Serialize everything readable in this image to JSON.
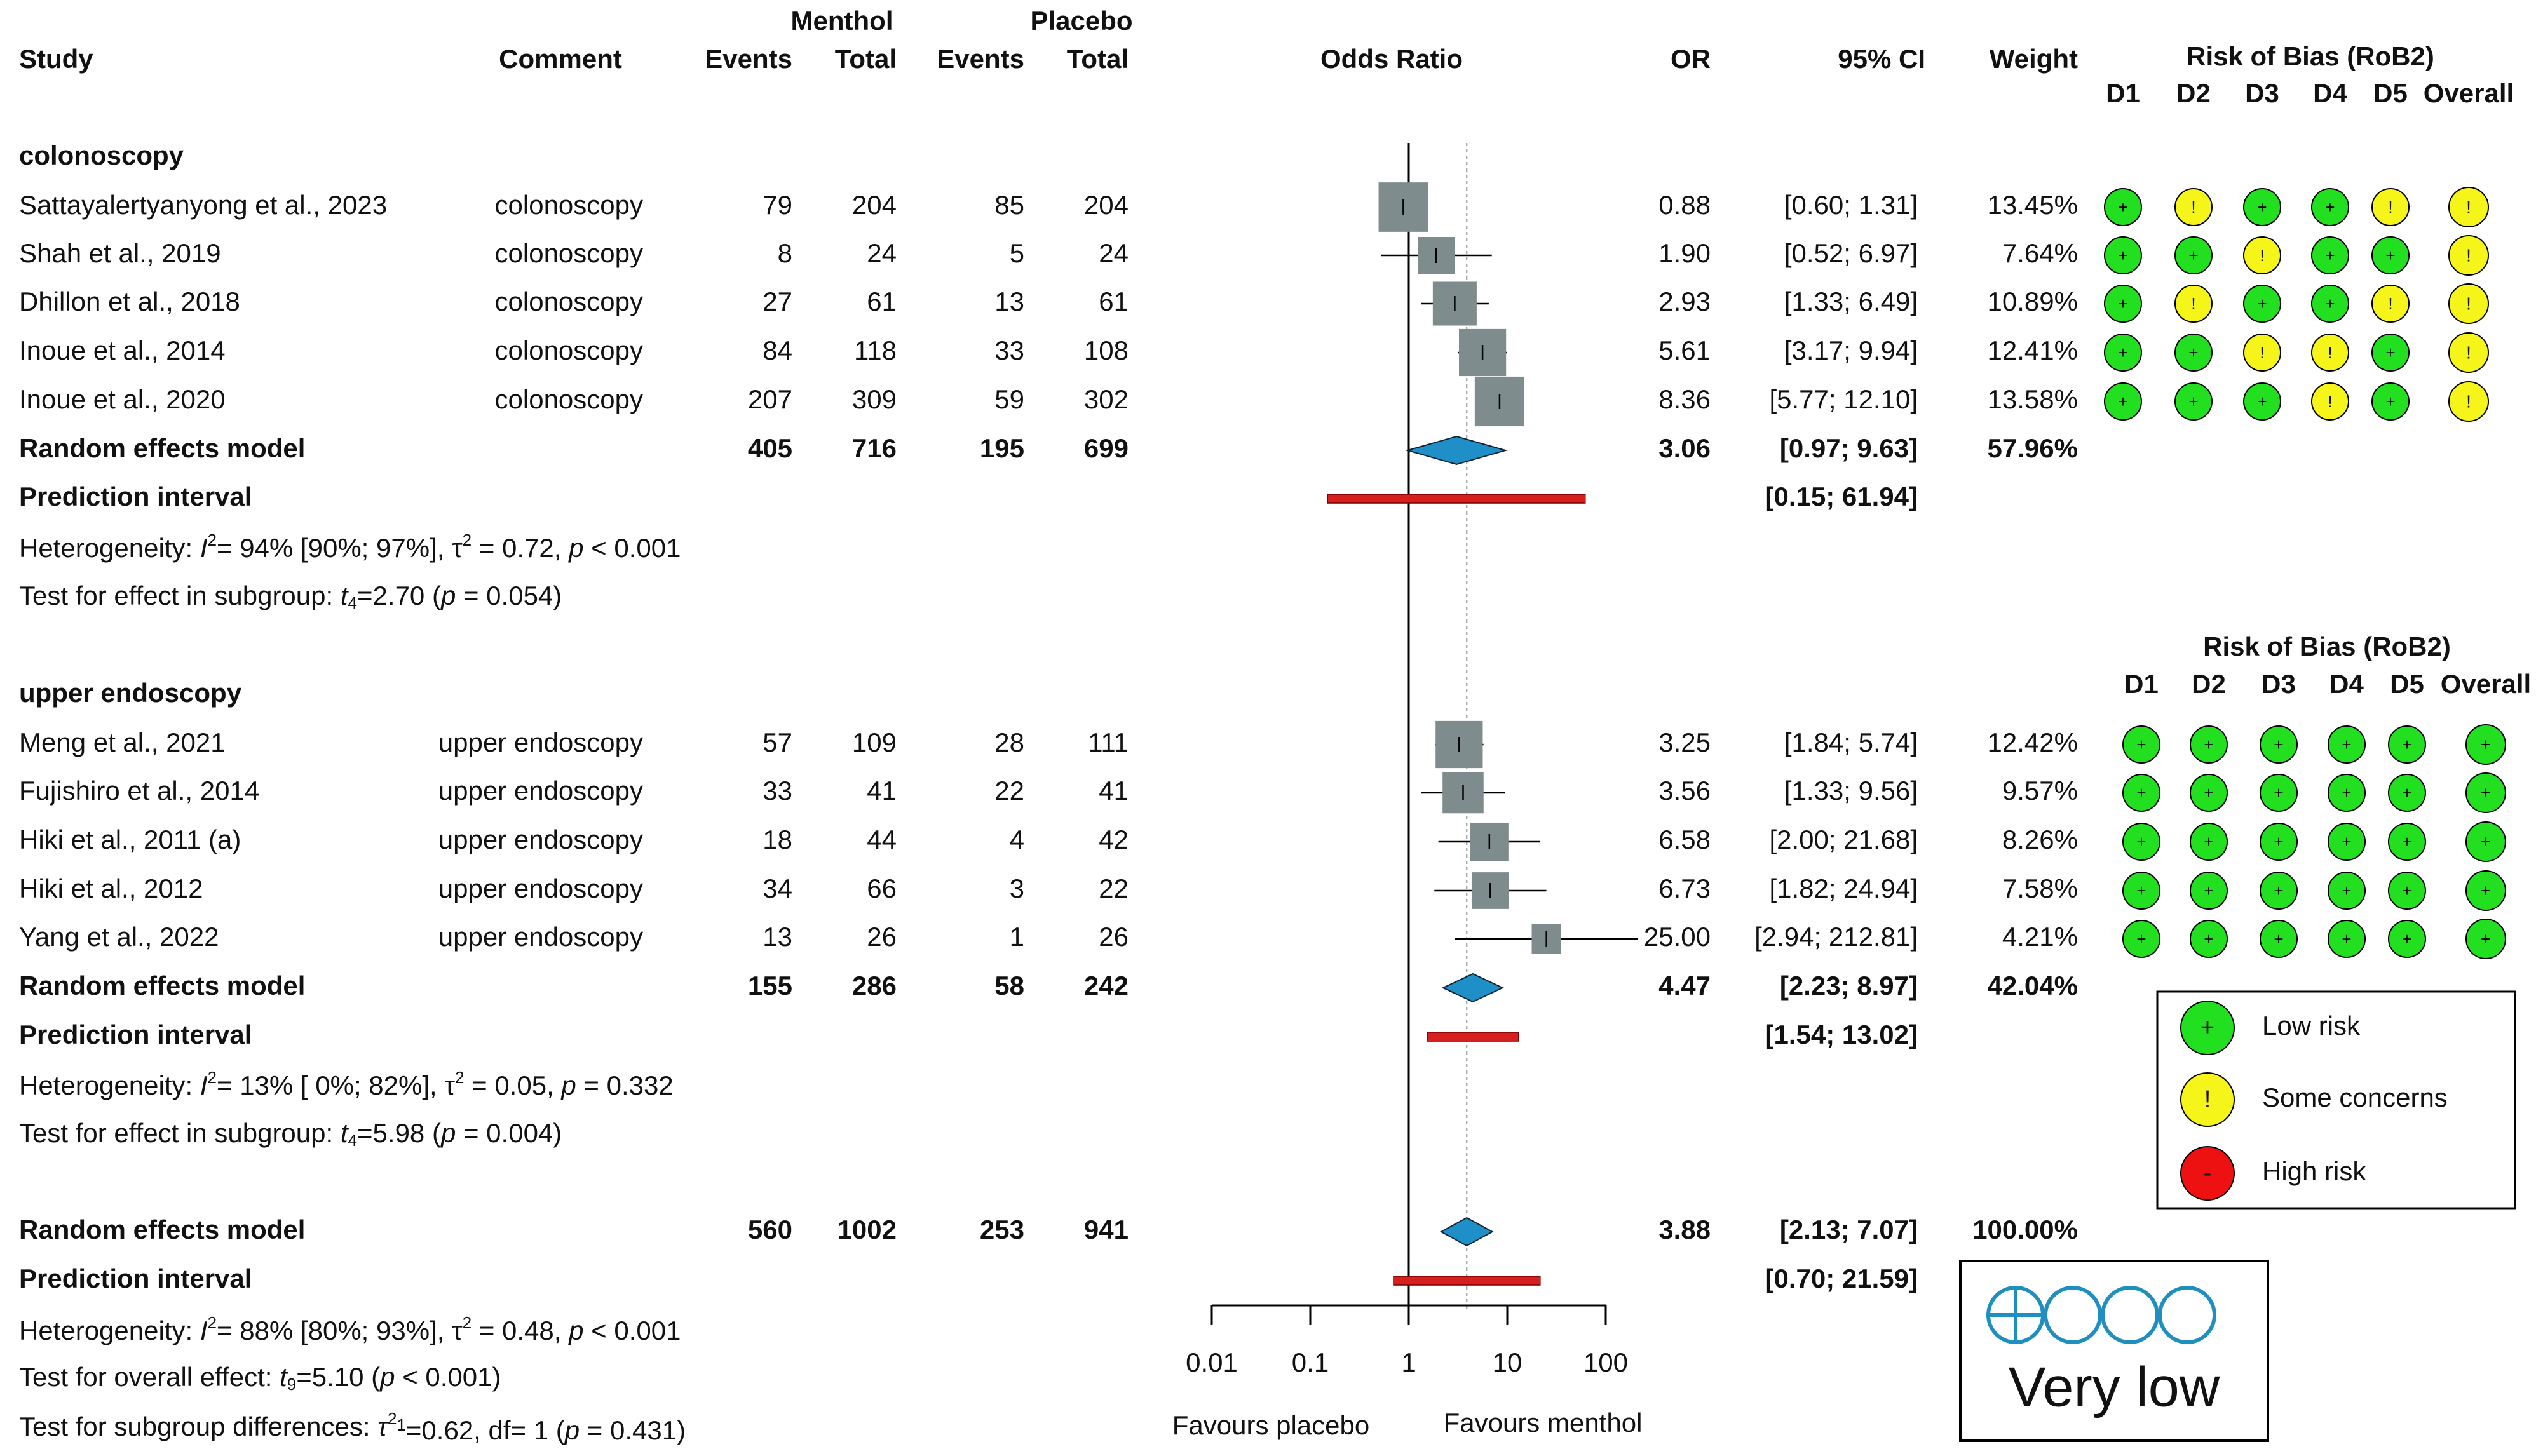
{
  "colors": {
    "text": "#111111",
    "square": "#7f8c8d",
    "diamond": "#1f8fc8",
    "prediction": "#d61f1f",
    "low": "#22e01f",
    "some": "#f5f51a",
    "high": "#ee1111",
    "grade": "#1e8fbf"
  },
  "chart_data": {
    "type": "forest",
    "measure": "Odds Ratio",
    "scale": "log",
    "xlim": [
      0.01,
      100
    ],
    "ticks": [
      "0.01",
      "0.1",
      "1",
      "10",
      "100"
    ],
    "reference_line": 1,
    "overall_line": 3.88,
    "headers": {
      "group_menthol": "Menthol",
      "group_placebo": "Placebo",
      "study": "Study",
      "comment": "Comment",
      "events": "Events",
      "total": "Total",
      "plot": "Odds Ratio",
      "or": "OR",
      "ci": "95% CI",
      "weight": "Weight"
    },
    "rob_title": "Risk of Bias (RoB2)",
    "rob_domains": [
      "D1",
      "D2",
      "D3",
      "D4",
      "D5",
      "Overall"
    ],
    "axis_labels": {
      "left": "Favours placebo",
      "right": "Favours menthol"
    },
    "subgroups": [
      {
        "name": "colonoscopy",
        "studies": [
          {
            "study": "Sattayalertyanyong et al., 2023",
            "comment": "colonoscopy",
            "me": 79,
            "mt": 204,
            "pe": 85,
            "pt": 204,
            "or": 0.88,
            "lo": 0.6,
            "hi": 1.31,
            "or_txt": "0.88",
            "ci_txt": "[0.60;  1.31]",
            "weight": "13.45%",
            "w": 13.45,
            "rob": [
              "+",
              "!",
              "+",
              "+",
              "!",
              "!"
            ]
          },
          {
            "study": "Shah et al., 2019",
            "comment": "colonoscopy",
            "me": 8,
            "mt": 24,
            "pe": 5,
            "pt": 24,
            "or": 1.9,
            "lo": 0.52,
            "hi": 6.97,
            "or_txt": "1.90",
            "ci_txt": "[0.52;  6.97]",
            "weight": "7.64%",
            "w": 7.64,
            "rob": [
              "+",
              "+",
              "!",
              "+",
              "+",
              "!"
            ]
          },
          {
            "study": "Dhillon et al., 2018",
            "comment": "colonoscopy",
            "me": 27,
            "mt": 61,
            "pe": 13,
            "pt": 61,
            "or": 2.93,
            "lo": 1.33,
            "hi": 6.49,
            "or_txt": "2.93",
            "ci_txt": "[1.33;  6.49]",
            "weight": "10.89%",
            "w": 10.89,
            "rob": [
              "+",
              "!",
              "+",
              "+",
              "!",
              "!"
            ]
          },
          {
            "study": "Inoue et al., 2014",
            "comment": "colonoscopy",
            "me": 84,
            "mt": 118,
            "pe": 33,
            "pt": 108,
            "or": 5.61,
            "lo": 3.17,
            "hi": 9.94,
            "or_txt": "5.61",
            "ci_txt": "[3.17;  9.94]",
            "weight": "12.41%",
            "w": 12.41,
            "rob": [
              "+",
              "+",
              "!",
              "!",
              "+",
              "!"
            ]
          },
          {
            "study": "Inoue et al., 2020",
            "comment": "colonoscopy",
            "me": 207,
            "mt": 309,
            "pe": 59,
            "pt": 302,
            "or": 8.36,
            "lo": 5.77,
            "hi": 12.1,
            "or_txt": "8.36",
            "ci_txt": "[5.77;  12.10]",
            "weight": "13.58%",
            "w": 13.58,
            "rob": [
              "+",
              "+",
              "+",
              "!",
              "+",
              "!"
            ]
          }
        ],
        "model": {
          "label": "Random effects model",
          "me": 405,
          "mt": 716,
          "pe": 195,
          "pt": 699,
          "or": 3.06,
          "lo": 0.97,
          "hi": 9.63,
          "or_txt": "3.06",
          "ci_txt": "[0.97;  9.63]",
          "weight": "57.96%"
        },
        "prediction": {
          "label": "Prediction interval",
          "lo": 0.15,
          "hi": 61.94,
          "ci_txt": "[0.15;  61.94]"
        },
        "heterogeneity": {
          "prefix": "Heterogeneity: ",
          "i2_var": "I",
          "i2": "= 94% [90%; 97%], ",
          "tau_var": "τ",
          "tau": " = 0.72, ",
          "p_var": "p",
          "p": " < 0.001"
        },
        "test": {
          "prefix": "Test for effect in subgroup: ",
          "var": "t",
          "sub": "4",
          "val": "=2.70 (",
          "p_var": "p",
          "p": " = 0.054)"
        }
      },
      {
        "name": "upper endoscopy",
        "studies": [
          {
            "study": "Meng et al., 2021",
            "comment": "upper endoscopy",
            "me": 57,
            "mt": 109,
            "pe": 28,
            "pt": 111,
            "or": 3.25,
            "lo": 1.84,
            "hi": 5.74,
            "or_txt": "3.25",
            "ci_txt": "[1.84;  5.74]",
            "weight": "12.42%",
            "w": 12.42,
            "rob": [
              "+",
              "+",
              "+",
              "+",
              "+",
              "+"
            ]
          },
          {
            "study": "Fujishiro et al., 2014",
            "comment": "upper endoscopy",
            "me": 33,
            "mt": 41,
            "pe": 22,
            "pt": 41,
            "or": 3.56,
            "lo": 1.33,
            "hi": 9.56,
            "or_txt": "3.56",
            "ci_txt": "[1.33;  9.56]",
            "weight": "9.57%",
            "w": 9.57,
            "rob": [
              "+",
              "+",
              "+",
              "+",
              "+",
              "+"
            ]
          },
          {
            "study": "Hiki et al., 2011 (a)",
            "comment": "upper endoscopy",
            "me": 18,
            "mt": 44,
            "pe": 4,
            "pt": 42,
            "or": 6.58,
            "lo": 2.0,
            "hi": 21.68,
            "or_txt": "6.58",
            "ci_txt": "[2.00;  21.68]",
            "weight": "8.26%",
            "w": 8.26,
            "rob": [
              "+",
              "+",
              "+",
              "+",
              "+",
              "+"
            ]
          },
          {
            "study": "Hiki et al., 2012",
            "comment": "upper endoscopy",
            "me": 34,
            "mt": 66,
            "pe": 3,
            "pt": 22,
            "or": 6.73,
            "lo": 1.82,
            "hi": 24.94,
            "or_txt": "6.73",
            "ci_txt": "[1.82;  24.94]",
            "weight": "7.58%",
            "w": 7.58,
            "rob": [
              "+",
              "+",
              "+",
              "+",
              "+",
              "+"
            ]
          },
          {
            "study": "Yang et al.,  2022",
            "comment": "upper endoscopy",
            "me": 13,
            "mt": 26,
            "pe": 1,
            "pt": 26,
            "or": 25.0,
            "lo": 2.94,
            "hi": 212.81,
            "or_txt": "25.00",
            "ci_txt": "[2.94;  212.81]",
            "weight": "4.21%",
            "w": 4.21,
            "rob": [
              "+",
              "+",
              "+",
              "+",
              "+",
              "+"
            ]
          }
        ],
        "model": {
          "label": "Random effects model",
          "me": 155,
          "mt": 286,
          "pe": 58,
          "pt": 242,
          "or": 4.47,
          "lo": 2.23,
          "hi": 8.97,
          "or_txt": "4.47",
          "ci_txt": "[2.23;  8.97]",
          "weight": "42.04%"
        },
        "prediction": {
          "label": "Prediction interval",
          "lo": 1.54,
          "hi": 13.02,
          "ci_txt": "[1.54;  13.02]"
        },
        "heterogeneity": {
          "prefix": "Heterogeneity: ",
          "i2_var": "I",
          "i2": "= 13% [ 0%; 82%], ",
          "tau_var": "τ",
          "tau": " = 0.05, ",
          "p_var": "p",
          "p": " = 0.332"
        },
        "test": {
          "prefix": "Test for effect in subgroup: ",
          "var": "t",
          "sub": "4",
          "val": "=5.98 (",
          "p_var": "p",
          "p": " = 0.004)"
        }
      }
    ],
    "overall": {
      "model": {
        "label": "Random effects model",
        "me": 560,
        "mt": 1002,
        "pe": 253,
        "pt": 941,
        "or": 3.88,
        "lo": 2.13,
        "hi": 7.07,
        "or_txt": "3.88",
        "ci_txt": "[2.13;  7.07]",
        "weight": "100.00%"
      },
      "prediction": {
        "label": "Prediction interval",
        "lo": 0.7,
        "hi": 21.59,
        "ci_txt": "[0.70;  21.59]"
      },
      "heterogeneity": {
        "prefix": "Heterogeneity: ",
        "i2_var": "I",
        "i2": "= 88% [80%; 93%], ",
        "tau_var": "τ",
        "tau": " = 0.48, ",
        "p_var": "p",
        "p": " < 0.001"
      },
      "test_overall": {
        "prefix": "Test for overall effect: ",
        "var": "t",
        "sub": "9",
        "val": "=5.10  (",
        "p_var": "p",
        "p": " < 0.001)"
      },
      "test_subgroup": {
        "prefix": "Test for subgroup differences: ",
        "var": "τ",
        "sub": "1",
        "sup": "2",
        "val": "=0.62, df= 1 (",
        "p_var": "p",
        "p": " = 0.431)"
      }
    },
    "legend": [
      {
        "symbol": "+",
        "label": "Low risk"
      },
      {
        "symbol": "!",
        "label": "Some concerns"
      },
      {
        "symbol": "-",
        "label": "High risk"
      }
    ],
    "grade": {
      "symbols": "⊕◯◯◯",
      "label": "Very low"
    }
  }
}
